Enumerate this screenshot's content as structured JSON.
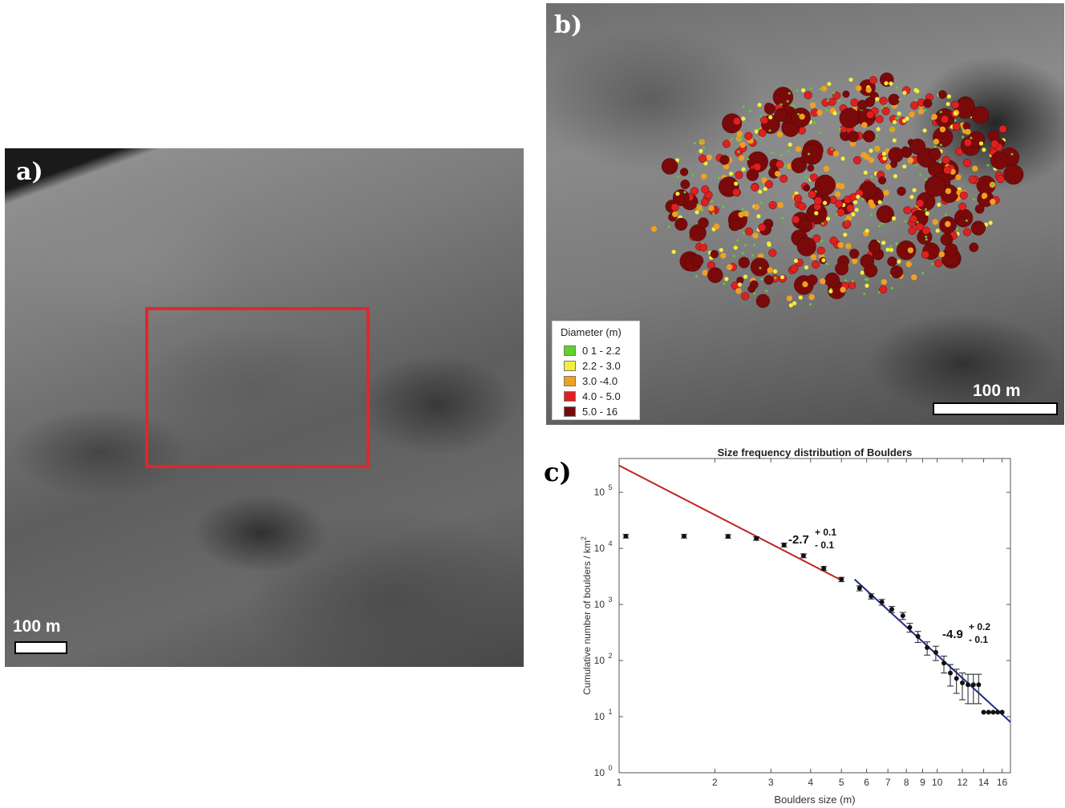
{
  "panel_a": {
    "label": "a)",
    "scale_bar": "100 m"
  },
  "panel_b": {
    "label": "b)",
    "scale_bar": "100 m",
    "legend": {
      "title": "Diameter (m)",
      "items": [
        {
          "label": "0 1 - 2.2",
          "color": "#5fd12a"
        },
        {
          "label": "2.2 - 3.0",
          "color": "#f2ef3a"
        },
        {
          "label": "3.0 -4.0",
          "color": "#f0a020"
        },
        {
          "label": "4.0 - 5.0",
          "color": "#e02020"
        },
        {
          "label": "5.0 - 16",
          "color": "#7a0a0a"
        }
      ]
    }
  },
  "panel_c": {
    "label": "c)"
  },
  "chart_data": {
    "type": "scatter",
    "title": "Size frequency distribution of Boulders",
    "xlabel": "Boulders size (m)",
    "ylabel": "Cumulative number of boulders / km",
    "ylabel_superscript": "2",
    "xscale": "log",
    "yscale": "log",
    "xlim": [
      1,
      17
    ],
    "ylim": [
      1,
      400000
    ],
    "x_ticks": [
      1,
      2,
      3,
      4,
      5,
      6,
      7,
      8,
      9,
      10,
      12,
      14,
      16
    ],
    "y_ticks": [
      {
        "value": 1,
        "label": "10",
        "exp": "0"
      },
      {
        "value": 10,
        "label": "10",
        "exp": "1"
      },
      {
        "value": 100,
        "label": "10",
        "exp": "2"
      },
      {
        "value": 1000,
        "label": "10",
        "exp": "3"
      },
      {
        "value": 10000,
        "label": "10",
        "exp": "4"
      },
      {
        "value": 100000,
        "label": "10",
        "exp": "5"
      }
    ],
    "series": [
      {
        "points": [
          {
            "x": 1.05,
            "y": 16500,
            "err": 1200
          },
          {
            "x": 1.6,
            "y": 16500,
            "err": 1200
          },
          {
            "x": 2.2,
            "y": 16400,
            "err": 1200
          },
          {
            "x": 2.7,
            "y": 15000,
            "err": 1100
          },
          {
            "x": 3.3,
            "y": 11500,
            "err": 900
          },
          {
            "x": 3.8,
            "y": 7400,
            "err": 600
          },
          {
            "x": 4.4,
            "y": 4400,
            "err": 350
          },
          {
            "x": 5.0,
            "y": 2800,
            "err": 250
          },
          {
            "x": 5.7,
            "y": 1950,
            "err": 200
          },
          {
            "x": 6.2,
            "y": 1400,
            "err": 150
          },
          {
            "x": 6.7,
            "y": 1100,
            "err": 130
          },
          {
            "x": 7.2,
            "y": 820,
            "err": 100
          },
          {
            "x": 7.8,
            "y": 630,
            "err": 90
          },
          {
            "x": 8.2,
            "y": 390,
            "err": 70
          },
          {
            "x": 8.7,
            "y": 270,
            "err": 60
          },
          {
            "x": 9.3,
            "y": 170,
            "err": 45
          },
          {
            "x": 9.9,
            "y": 140,
            "err": 40
          },
          {
            "x": 10.5,
            "y": 90,
            "err": 30
          },
          {
            "x": 11.0,
            "y": 60,
            "err": 25
          },
          {
            "x": 11.5,
            "y": 48,
            "err": 22
          },
          {
            "x": 12.0,
            "y": 40,
            "err": 20
          },
          {
            "x": 12.5,
            "y": 37,
            "err": 20
          },
          {
            "x": 13.0,
            "y": 37,
            "err": 20
          },
          {
            "x": 13.5,
            "y": 37,
            "err": 20
          },
          {
            "x": 14.0,
            "y": 12,
            "err": 0
          },
          {
            "x": 14.5,
            "y": 12,
            "err": 0
          },
          {
            "x": 15.0,
            "y": 12,
            "err": 0
          },
          {
            "x": 15.5,
            "y": 12,
            "err": 0
          },
          {
            "x": 16.0,
            "y": 12,
            "err": 0
          }
        ]
      }
    ],
    "fits": [
      {
        "label": "-2.7",
        "plus": "+ 0.1",
        "minus": "- 0.1",
        "color": "#c0231f",
        "x": [
          1,
          5.0
        ],
        "y": [
          300000,
          2700
        ]
      },
      {
        "label": "-4.9",
        "plus": "+ 0.2",
        "minus": "- 0.1",
        "color": "#1f2a8a",
        "x": [
          5.5,
          17
        ],
        "y": [
          2800,
          8
        ]
      }
    ]
  }
}
